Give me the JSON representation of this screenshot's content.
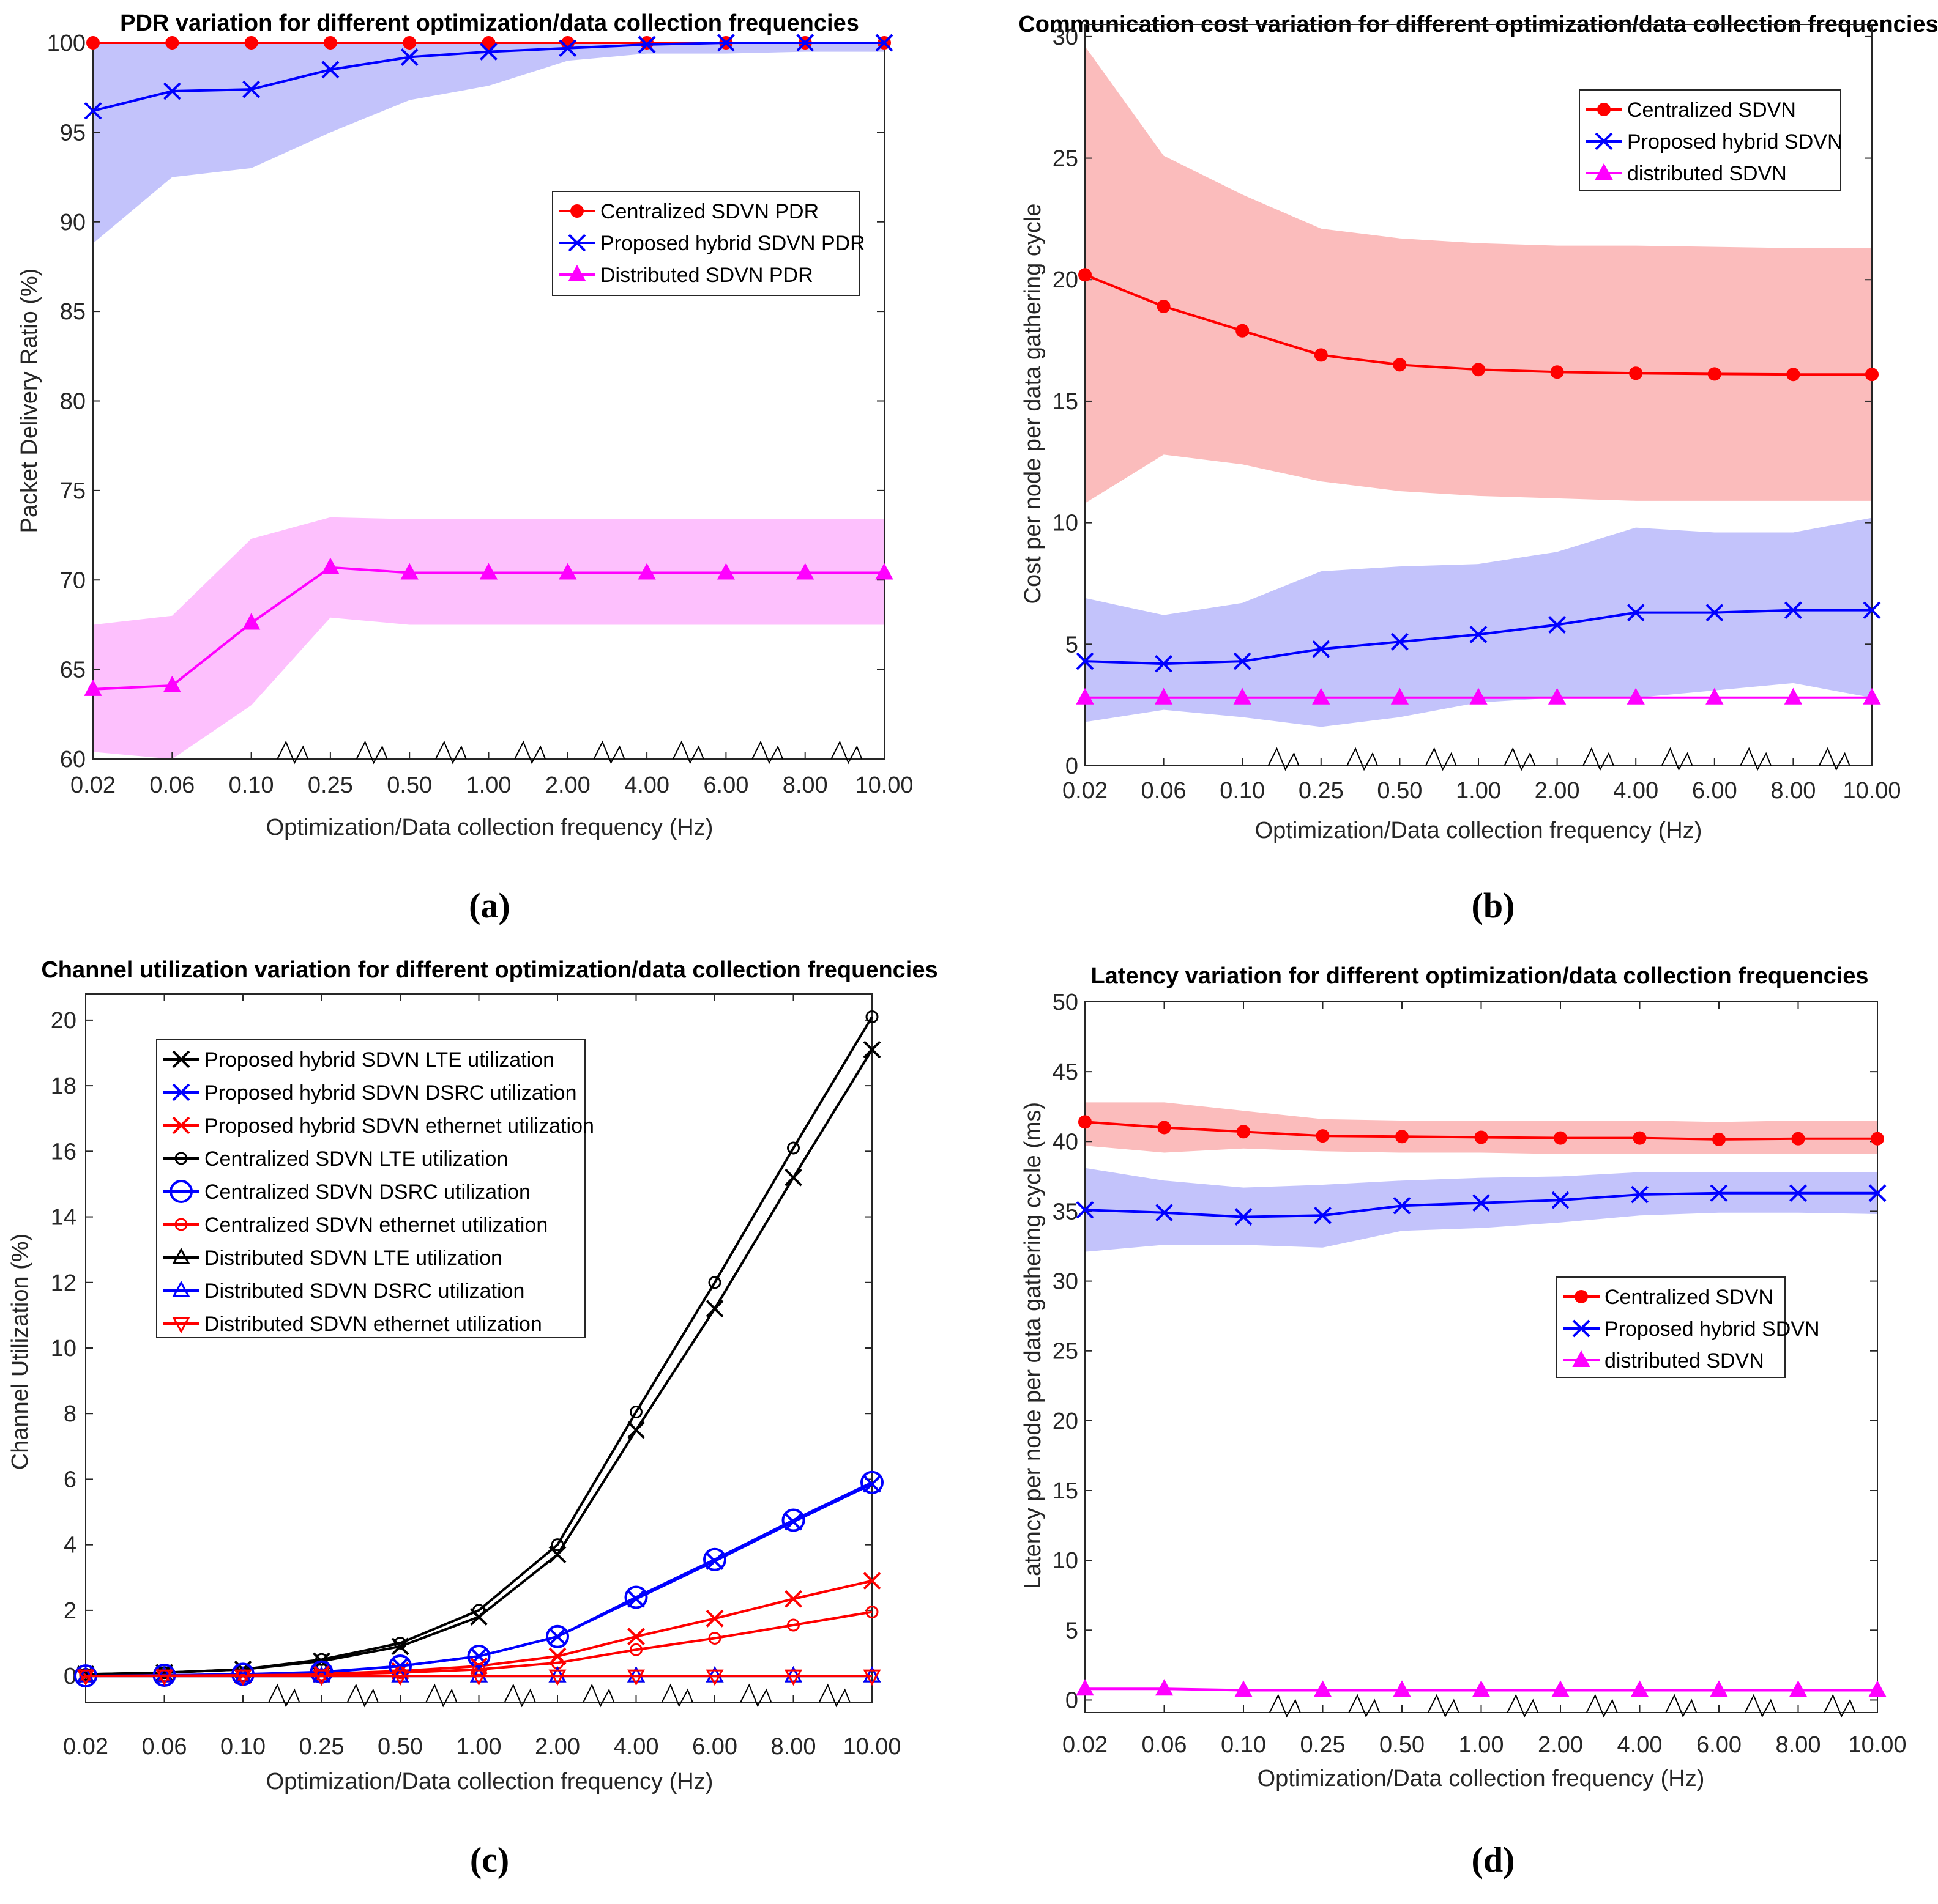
{
  "colors": {
    "red": "#ff0000",
    "blue": "#0000ff",
    "magenta": "#ff00ff",
    "black": "#000000",
    "band_red": "#fbbcbc",
    "band_blue": "#c3c3fb",
    "band_magenta": "#fdc0fd",
    "axis_gray": "#262626"
  },
  "chart_data": [
    {
      "panel": "a",
      "caption": "(a)",
      "type": "line",
      "title": "PDR variation for different optimization/data collection frequencies",
      "xlabel": "Optimization/Data collection frequency (Hz)",
      "ylabel": "Packet Delivery Ratio (%)",
      "categories": [
        "0.02",
        "0.06",
        "0.10",
        "0.25",
        "0.50",
        "1.00",
        "2.00",
        "4.00",
        "6.00",
        "8.00",
        "10.00"
      ],
      "axis_break_after_index": [
        2,
        3,
        4,
        5,
        6,
        7,
        8,
        9
      ],
      "ylim": [
        60,
        100
      ],
      "yticks": [
        60,
        65,
        70,
        75,
        80,
        85,
        90,
        95,
        100
      ],
      "legend_location": "right-upper",
      "series": [
        {
          "name": "Centralized SDVN PDR",
          "color": "#ff0000",
          "marker": "dot",
          "values": [
            100,
            100,
            100,
            100,
            100,
            100,
            100,
            100,
            100,
            100,
            100
          ]
        },
        {
          "name": "Proposed hybrid SDVN PDR",
          "color": "#0000ff",
          "marker": "x",
          "values": [
            96.2,
            97.3,
            97.4,
            98.5,
            99.2,
            99.5,
            99.7,
            99.9,
            100,
            100,
            100
          ],
          "band_lower": [
            88.8,
            92.5,
            93.0,
            95.0,
            96.8,
            97.6,
            99.0,
            99.4,
            99.4,
            99.5,
            99.5
          ],
          "band_upper": [
            100,
            100,
            100,
            100,
            100,
            100,
            100,
            100,
            100,
            100,
            100
          ],
          "band_color": "#c3c3fb"
        },
        {
          "name": "Distributed SDVN PDR",
          "color": "#ff00ff",
          "marker": "triangle",
          "values": [
            63.9,
            64.1,
            67.6,
            70.7,
            70.4,
            70.4,
            70.4,
            70.4,
            70.4,
            70.4,
            70.4
          ],
          "band_lower": [
            60.4,
            60.0,
            63.0,
            67.9,
            67.5,
            67.5,
            67.5,
            67.5,
            67.5,
            67.5,
            67.5
          ],
          "band_upper": [
            67.5,
            68.0,
            72.3,
            73.5,
            73.4,
            73.4,
            73.4,
            73.4,
            73.4,
            73.4,
            73.4
          ],
          "band_color": "#fdc0fd"
        }
      ]
    },
    {
      "panel": "b",
      "caption": "(b)",
      "type": "line",
      "title": "Communication cost variation for different optimization/data collection frequencies",
      "xlabel": "Optimization/Data collection frequency (Hz)",
      "ylabel": "Cost per node per data gathering cycle",
      "categories": [
        "0.02",
        "0.06",
        "0.10",
        "0.25",
        "0.50",
        "1.00",
        "2.00",
        "4.00",
        "6.00",
        "8.00",
        "10.00"
      ],
      "axis_break_after_index": [
        2,
        3,
        4,
        5,
        6,
        7,
        8,
        9
      ],
      "ylim": [
        0,
        30.5
      ],
      "yticks": [
        0,
        5,
        10,
        15,
        20,
        25,
        30
      ],
      "legend_location": "top-right",
      "series": [
        {
          "name": "Centralized SDVN",
          "color": "#ff0000",
          "marker": "dot",
          "values": [
            20.2,
            18.9,
            17.9,
            16.9,
            16.5,
            16.3,
            16.2,
            16.15,
            16.12,
            16.1,
            16.1
          ],
          "band_lower": [
            10.8,
            12.8,
            12.4,
            11.7,
            11.3,
            11.1,
            11.0,
            10.9,
            10.9,
            10.9,
            10.9
          ],
          "band_upper": [
            29.6,
            25.1,
            23.5,
            22.1,
            21.7,
            21.5,
            21.4,
            21.4,
            21.35,
            21.3,
            21.3
          ],
          "band_color": "#fbbcbc"
        },
        {
          "name": "Proposed hybrid SDVN",
          "color": "#0000ff",
          "marker": "x",
          "values": [
            4.3,
            4.2,
            4.3,
            4.8,
            5.1,
            5.4,
            5.8,
            6.3,
            6.3,
            6.4,
            6.4
          ],
          "band_lower": [
            1.8,
            2.3,
            2.0,
            1.6,
            2.0,
            2.6,
            2.8,
            2.8,
            3.1,
            3.4,
            2.8
          ],
          "band_upper": [
            6.9,
            6.2,
            6.7,
            8.0,
            8.2,
            8.3,
            8.8,
            9.8,
            9.6,
            9.6,
            10.2
          ],
          "band_color": "#c3c3fb"
        },
        {
          "name": "distributed SDVN",
          "color": "#ff00ff",
          "marker": "triangle",
          "values": [
            2.8,
            2.8,
            2.8,
            2.8,
            2.8,
            2.8,
            2.8,
            2.8,
            2.8,
            2.8,
            2.8
          ]
        }
      ]
    },
    {
      "panel": "c",
      "caption": "(c)",
      "type": "line",
      "title": "Channel utilization variation for different optimization/data collection frequencies",
      "xlabel": "Optimization/Data collection frequency (Hz)",
      "ylabel": "Channel Utilization (%)",
      "categories": [
        "0.02",
        "0.06",
        "0.10",
        "0.25",
        "0.50",
        "1.00",
        "2.00",
        "4.00",
        "6.00",
        "8.00",
        "10.00"
      ],
      "axis_break_after_index": [
        2,
        3,
        4,
        5,
        6,
        7,
        8,
        9
      ],
      "ylim": [
        -0.8,
        20.8
      ],
      "yticks": [
        0,
        2,
        4,
        6,
        8,
        10,
        12,
        14,
        16,
        18,
        20
      ],
      "legend_location": "top-left",
      "series": [
        {
          "name": "Proposed hybrid SDVN LTE utilization",
          "color": "#000000",
          "marker": "x",
          "values": [
            0.05,
            0.1,
            0.2,
            0.45,
            0.9,
            1.8,
            3.7,
            7.5,
            11.2,
            15.2,
            19.1
          ]
        },
        {
          "name": "Proposed hybrid SDVN DSRC utilization",
          "color": "#0000ff",
          "marker": "x",
          "values": [
            0.0,
            0.02,
            0.05,
            0.1,
            0.3,
            0.6,
            1.2,
            2.35,
            3.5,
            4.7,
            5.85
          ]
        },
        {
          "name": "Proposed hybrid SDVN ethernet utilization",
          "color": "#ff0000",
          "marker": "x",
          "values": [
            0.0,
            0.01,
            0.02,
            0.06,
            0.15,
            0.3,
            0.6,
            1.2,
            1.75,
            2.35,
            2.9
          ]
        },
        {
          "name": "Centralized SDVN LTE utilization",
          "color": "#000000",
          "marker": "circle",
          "values": [
            0.05,
            0.1,
            0.2,
            0.5,
            1.0,
            2.0,
            4.0,
            8.05,
            12.0,
            16.1,
            20.1
          ]
        },
        {
          "name": "Centralized SDVN DSRC utilization",
          "color": "#0000ff",
          "marker": "bigcircle",
          "values": [
            0.0,
            0.02,
            0.05,
            0.12,
            0.3,
            0.6,
            1.2,
            2.4,
            3.55,
            4.75,
            5.9
          ]
        },
        {
          "name": "Centralized SDVN ethernet utilization",
          "color": "#ff0000",
          "marker": "circle",
          "values": [
            0.0,
            0.01,
            0.02,
            0.04,
            0.1,
            0.2,
            0.4,
            0.8,
            1.15,
            1.55,
            1.95
          ]
        },
        {
          "name": "Distributed SDVN LTE utilization",
          "color": "#000000",
          "marker": "triangle-open",
          "values": [
            0,
            0,
            0,
            0,
            0,
            0,
            0,
            0,
            0,
            0,
            0
          ]
        },
        {
          "name": "Distributed SDVN DSRC utilization",
          "color": "#0000ff",
          "marker": "triangle-open",
          "values": [
            0,
            0,
            0,
            0,
            0,
            0,
            0,
            0,
            0,
            0,
            0
          ]
        },
        {
          "name": "Distributed SDVN ethernet utilization",
          "color": "#ff0000",
          "marker": "triangle-down-open",
          "values": [
            0,
            0,
            0,
            0,
            0,
            0,
            0,
            0,
            0,
            0,
            0
          ]
        }
      ]
    },
    {
      "panel": "d",
      "caption": "(d)",
      "type": "line",
      "title": "Latency variation for different optimization/data collection frequencies",
      "xlabel": "Optimization/Data collection frequency (Hz)",
      "ylabel": "Latency per node per data gathering cycle (ms)",
      "categories": [
        "0.02",
        "0.06",
        "0.10",
        "0.25",
        "0.50",
        "1.00",
        "2.00",
        "4.00",
        "6.00",
        "8.00",
        "10.00"
      ],
      "axis_break_after_index": [
        2,
        3,
        4,
        5,
        6,
        7,
        8,
        9
      ],
      "ylim": [
        -0.9,
        50
      ],
      "yticks": [
        0,
        5,
        10,
        15,
        20,
        25,
        30,
        35,
        40,
        45,
        50
      ],
      "legend_location": "right-middle",
      "series": [
        {
          "name": "Centralized SDVN",
          "color": "#ff0000",
          "marker": "dot",
          "values": [
            41.4,
            41.0,
            40.7,
            40.4,
            40.35,
            40.3,
            40.25,
            40.25,
            40.15,
            40.2,
            40.2
          ],
          "band_lower": [
            39.7,
            39.2,
            39.5,
            39.3,
            39.2,
            39.2,
            39.1,
            39.1,
            39.1,
            39.1,
            39.1
          ],
          "band_upper": [
            42.8,
            42.8,
            42.2,
            41.6,
            41.5,
            41.5,
            41.5,
            41.5,
            41.4,
            41.5,
            41.5
          ],
          "band_color": "#fbbcbc"
        },
        {
          "name": "Proposed hybrid SDVN",
          "color": "#0000ff",
          "marker": "x",
          "values": [
            35.1,
            34.9,
            34.6,
            34.7,
            35.4,
            35.6,
            35.8,
            36.2,
            36.3,
            36.3,
            36.3
          ],
          "band_lower": [
            32.1,
            32.6,
            32.6,
            32.4,
            33.6,
            33.8,
            34.2,
            34.7,
            34.9,
            34.9,
            34.8
          ],
          "band_upper": [
            38.1,
            37.2,
            36.7,
            36.9,
            37.2,
            37.4,
            37.5,
            37.8,
            37.8,
            37.8,
            37.8
          ],
          "band_color": "#c3c3fb"
        },
        {
          "name": "distributed SDVN",
          "color": "#ff00ff",
          "marker": "triangle",
          "values": [
            0.8,
            0.8,
            0.7,
            0.7,
            0.7,
            0.7,
            0.7,
            0.7,
            0.7,
            0.7,
            0.7
          ]
        }
      ]
    }
  ]
}
